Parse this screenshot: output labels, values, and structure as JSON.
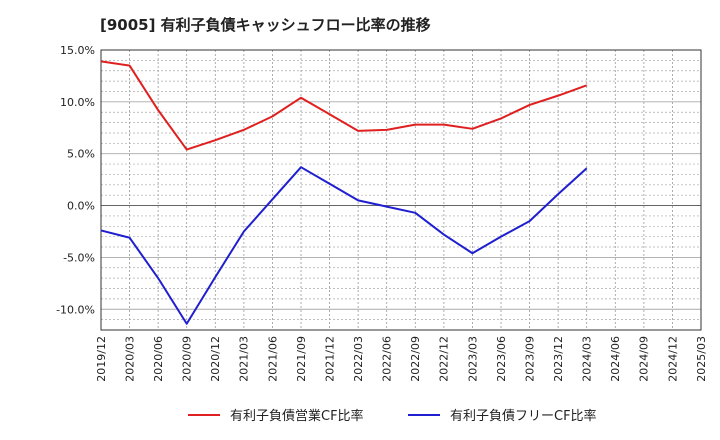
{
  "chart_data": {
    "type": "line",
    "title": "[9005]  有利子負債キャッシュフロー比率の推移",
    "xlabel": "",
    "ylabel": "",
    "ylim": [
      -12,
      15
    ],
    "y_ticks": [
      15,
      10,
      5,
      0,
      -5,
      -10
    ],
    "y_tick_labels": [
      "15.0%",
      "10.0%",
      "5.0%",
      "0.0%",
      "-5.0%",
      "-10.0%"
    ],
    "categories": [
      "2019/12",
      "2020/03",
      "2020/06",
      "2020/09",
      "2020/12",
      "2021/03",
      "2021/06",
      "2021/09",
      "2021/12",
      "2022/03",
      "2022/06",
      "2022/09",
      "2022/12",
      "2023/03",
      "2023/06",
      "2023/09",
      "2023/12",
      "2024/03",
      "2024/06",
      "2024/09",
      "2024/12",
      "2025/03"
    ],
    "grid": true,
    "legend_position": "bottom",
    "series": [
      {
        "name": "有利子負債営業CF比率",
        "color": "#e02020",
        "values": [
          13.9,
          13.5,
          9.2,
          5.4,
          6.3,
          7.3,
          8.6,
          10.4,
          8.8,
          7.2,
          7.3,
          7.8,
          7.8,
          7.4,
          8.4,
          9.7,
          10.6,
          11.6,
          null,
          null,
          null,
          null
        ]
      },
      {
        "name": "有利子負債フリーCF比率",
        "color": "#1f1fd0",
        "values": [
          -2.4,
          -3.1,
          -7.0,
          -11.4,
          -6.9,
          -2.5,
          0.6,
          3.7,
          2.1,
          0.5,
          -0.1,
          -0.7,
          -2.8,
          -4.6,
          -3.0,
          -1.5,
          1.1,
          3.6,
          null,
          null,
          null,
          null
        ]
      }
    ]
  }
}
